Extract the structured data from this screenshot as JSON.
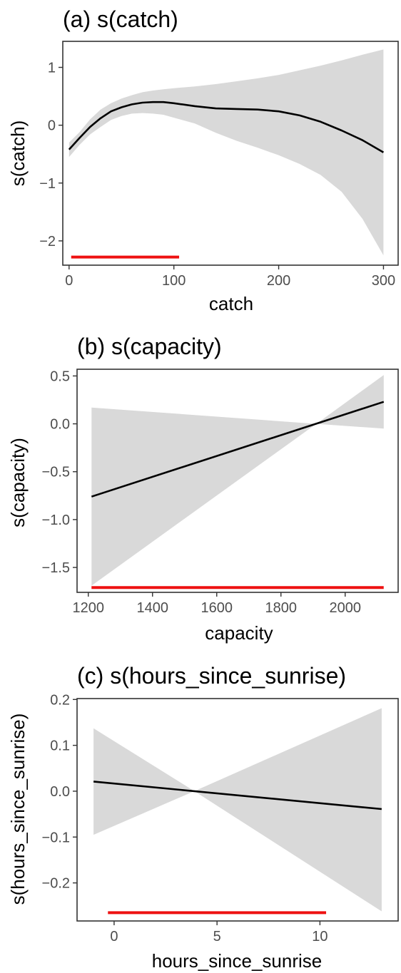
{
  "chart_data": [
    {
      "type": "line",
      "title": "(a) s(catch)",
      "xlabel": "catch",
      "ylabel": "s(catch)",
      "xlim": [
        -6,
        314
      ],
      "ylim": [
        -2.42,
        1.45
      ],
      "x_ticks": [
        0,
        100,
        200,
        300
      ],
      "x_tick_labels": [
        "0",
        "100",
        "200",
        "300"
      ],
      "y_ticks": [
        -2,
        -1,
        0,
        1
      ],
      "y_tick_labels": [
        "−2",
        "−1",
        "0",
        "1"
      ],
      "grid": false,
      "series": [
        {
          "x": [
            0,
            10,
            20,
            30,
            40,
            50,
            60,
            70,
            80,
            90,
            100,
            120,
            140,
            160,
            180,
            200,
            220,
            240,
            260,
            280,
            300
          ],
          "values": [
            -0.42,
            -0.22,
            -0.03,
            0.12,
            0.24,
            0.31,
            0.36,
            0.39,
            0.4,
            0.4,
            0.38,
            0.33,
            0.29,
            0.28,
            0.27,
            0.24,
            0.17,
            0.06,
            -0.09,
            -0.26,
            -0.47
          ]
        }
      ],
      "confidence_band": {
        "x": [
          0,
          10,
          20,
          30,
          40,
          50,
          60,
          70,
          80,
          90,
          100,
          120,
          140,
          160,
          180,
          200,
          220,
          240,
          260,
          280,
          300
        ],
        "upper": [
          -0.3,
          -0.12,
          0.1,
          0.27,
          0.38,
          0.46,
          0.52,
          0.57,
          0.6,
          0.62,
          0.64,
          0.67,
          0.71,
          0.76,
          0.81,
          0.87,
          0.95,
          1.03,
          1.12,
          1.22,
          1.31
        ],
        "lower": [
          -0.55,
          -0.34,
          -0.16,
          -0.03,
          0.09,
          0.16,
          0.2,
          0.21,
          0.2,
          0.18,
          0.13,
          0.03,
          -0.13,
          -0.27,
          -0.39,
          -0.52,
          -0.67,
          -0.86,
          -1.15,
          -1.62,
          -2.25
        ]
      },
      "band_color": "#d9d9d9",
      "line_color": "#000000",
      "highlight": {
        "x_start": 2,
        "x_end": 105,
        "y": -2.28,
        "color": "#ee1111"
      }
    },
    {
      "type": "line",
      "title": "(b) s(capacity)",
      "xlabel": "capacity",
      "ylabel": "s(capacity)",
      "xlim": [
        1165,
        2165
      ],
      "ylim": [
        -1.76,
        0.57
      ],
      "x_ticks": [
        1200,
        1400,
        1600,
        1800,
        2000
      ],
      "x_tick_labels": [
        "1200",
        "1400",
        "1600",
        "1800",
        "2000"
      ],
      "y_ticks": [
        -1.5,
        -1.0,
        -0.5,
        0.0,
        0.5
      ],
      "y_tick_labels": [
        "−1.5",
        "−1.0",
        "−0.5",
        "0.0",
        "0.5"
      ],
      "grid": false,
      "series": [
        {
          "x": [
            1210,
            2120
          ],
          "values": [
            -0.76,
            0.23
          ]
        }
      ],
      "confidence_band": {
        "x": [
          1210,
          1910,
          2120
        ],
        "upper": [
          0.17,
          0.0,
          0.51
        ],
        "lower": [
          -1.69,
          0.0,
          -0.05
        ]
      },
      "band_color": "#d9d9d9",
      "line_color": "#000000",
      "highlight": {
        "x_start": 1210,
        "x_end": 2120,
        "y": -1.71,
        "color": "#ee1111"
      }
    },
    {
      "type": "line",
      "title": "(c) s(hours_since_sunrise)",
      "xlabel": "hours_since_sunrise",
      "ylabel": "s(hours_since_sunrise)",
      "xlim": [
        -1.8,
        13.8
      ],
      "ylim": [
        -0.283,
        0.202
      ],
      "x_ticks": [
        0,
        5,
        10
      ],
      "x_tick_labels": [
        "0",
        "5",
        "10"
      ],
      "y_ticks": [
        -0.2,
        -0.1,
        0.0,
        0.1,
        0.2
      ],
      "y_tick_labels": [
        "−0.2",
        "−0.1",
        "0.0",
        "0.1",
        "0.2"
      ],
      "grid": false,
      "series": [
        {
          "x": [
            -1,
            13
          ],
          "values": [
            0.021,
            -0.039
          ]
        }
      ],
      "confidence_band": {
        "x": [
          -1,
          3.9,
          13
        ],
        "upper": [
          0.137,
          0.0,
          0.181
        ],
        "lower": [
          -0.095,
          0.0,
          -0.262
        ]
      },
      "band_color": "#d9d9d9",
      "line_color": "#000000",
      "highlight": {
        "x_start": -0.3,
        "x_end": 10.3,
        "y": -0.265,
        "color": "#ee1111"
      }
    }
  ]
}
